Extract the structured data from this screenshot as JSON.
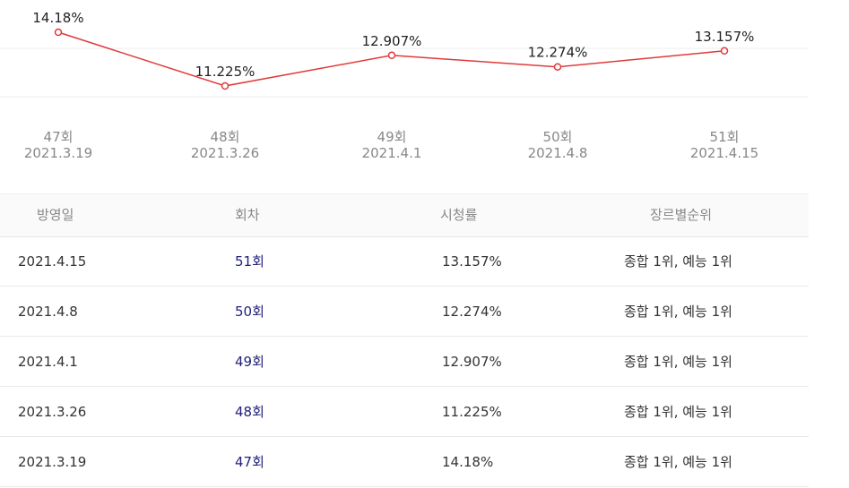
{
  "chart_data": {
    "type": "line",
    "categories": [
      "47회",
      "48회",
      "49회",
      "50회",
      "51회"
    ],
    "dates": [
      "2021.3.19",
      "2021.3.26",
      "2021.4.1",
      "2021.4.8",
      "2021.4.15"
    ],
    "values": [
      14.18,
      11.225,
      12.907,
      12.274,
      13.157
    ],
    "data_labels": [
      "14.18%",
      "11.225%",
      "12.907%",
      "12.274%",
      "13.157%"
    ],
    "line_color": "#e03a3a",
    "grid": true
  },
  "table": {
    "headers": [
      "방영일",
      "회차",
      "시청률",
      "장르별순위"
    ],
    "rows": [
      [
        "2021.4.15",
        "51회",
        "13.157%",
        "종합 1위, 예능 1위"
      ],
      [
        "2021.4.8",
        "50회",
        "12.274%",
        "종합 1위, 예능 1위"
      ],
      [
        "2021.4.1",
        "49회",
        "12.907%",
        "종합 1위, 예능 1위"
      ],
      [
        "2021.3.26",
        "48회",
        "11.225%",
        "종합 1위, 예능 1위"
      ],
      [
        "2021.3.19",
        "47회",
        "14.18%",
        "종합 1위, 예능 1위"
      ]
    ]
  }
}
